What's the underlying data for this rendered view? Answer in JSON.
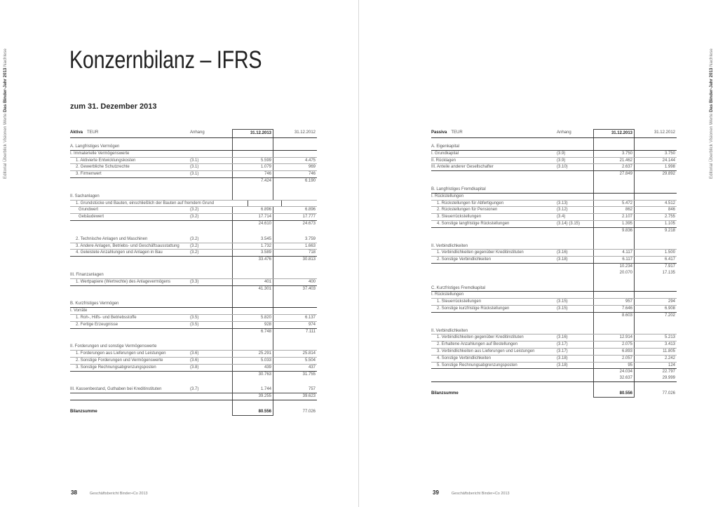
{
  "side_nav": {
    "before": "Editorial Überblick Visionen Werte ",
    "active": "Das Binder-Jahr 2013",
    "after": " Nachlese"
  },
  "title": "Konzernbilanz – IFRS",
  "subtitle": "zum 31. Dezember 2013",
  "aktiva": {
    "header": {
      "side": "Aktiva",
      "unit": "TEUR",
      "note": "Anhang",
      "y2013": "31.12.2013",
      "y2012": "31.12.2012"
    },
    "rows": [
      {
        "kind": "section",
        "label": "A.  Langfristiges Vermögen",
        "note": "",
        "v2013": "",
        "v2012": ""
      },
      {
        "kind": "group",
        "label": "I.   Immaterielle Vermögenswerte",
        "note": "",
        "v2013": "",
        "v2012": ""
      },
      {
        "kind": "item",
        "label": "1.  Aktivierte Entwicklungskosten",
        "note": "(3.1)",
        "v2013": "5.599",
        "v2012": "4.475"
      },
      {
        "kind": "item",
        "label": "2.  Gewerbliche Schutzrechte",
        "note": "(3.1)",
        "v2013": "1.079",
        "v2012": "969"
      },
      {
        "kind": "item",
        "label": "3.  Firmenwert",
        "note": "(3.1)",
        "v2013": "746",
        "v2012": "746"
      },
      {
        "kind": "subtotal",
        "label": "",
        "note": "",
        "v2013": "7.424",
        "v2012": "6.190"
      },
      {
        "kind": "group",
        "label": "II.  Sachanlagen",
        "note": "",
        "v2013": "",
        "v2012": ""
      },
      {
        "kind": "item",
        "label": "1.  Grundstücke und Bauten, einschließlich der Bauten auf fremdem Grund",
        "note": "",
        "v2013": "",
        "v2012": ""
      },
      {
        "kind": "subitem",
        "label": "Grundwert",
        "note": "(3.2)",
        "v2013": "6.896",
        "v2012": "6.896"
      },
      {
        "kind": "subitem",
        "label": "Gebäudewert",
        "note": "(3.2)",
        "v2013": "17.714",
        "v2012": "17.777"
      },
      {
        "kind": "subtotal",
        "label": "",
        "note": "",
        "v2013": "24.610",
        "v2012": "24.673"
      },
      {
        "kind": "item",
        "label": "2.  Technische Anlagen und Maschinen",
        "note": "(3.2)",
        "v2013": "3.545",
        "v2012": "3.759"
      },
      {
        "kind": "item",
        "label": "3.  Andere Anlagen, Betriebs- und Geschäftsausstattung",
        "note": "(3.2)",
        "v2013": "1.732",
        "v2012": "1.663"
      },
      {
        "kind": "item",
        "label": "4.  Geleistete Anzahlungen und Anlagen in Bau",
        "note": "(3.2)",
        "v2013": "3.589",
        "v2012": "718"
      },
      {
        "kind": "subtotal",
        "label": "",
        "note": "",
        "v2013": "33.476",
        "v2012": "30.813"
      },
      {
        "kind": "group",
        "label": "III. Finanzanlagen",
        "note": "",
        "v2013": "",
        "v2012": ""
      },
      {
        "kind": "item",
        "label": "1.  Wertpapiere (Wertrechte) des Anlagevermögens",
        "note": "(3.3)",
        "v2013": "401",
        "v2012": "400"
      },
      {
        "kind": "subtotal",
        "label": "",
        "note": "",
        "v2013": "41.301",
        "v2012": "37.403"
      },
      {
        "kind": "section",
        "label": "B.  Kurzfristiges Vermögen",
        "note": "",
        "v2013": "",
        "v2012": ""
      },
      {
        "kind": "group",
        "label": "I.   Vorräte",
        "note": "",
        "v2013": "",
        "v2012": ""
      },
      {
        "kind": "item",
        "label": "1.  Roh-, Hilfs- und Betriebsstoffe",
        "note": "(3.5)",
        "v2013": "5.820",
        "v2012": "6.137"
      },
      {
        "kind": "item",
        "label": "2.  Fertige Erzeugnisse",
        "note": "(3.5)",
        "v2013": "928",
        "v2012": "974"
      },
      {
        "kind": "subtotal",
        "label": "",
        "note": "",
        "v2013": "6.748",
        "v2012": "7.111"
      },
      {
        "kind": "group",
        "label": "II.  Forderungen und sonstige Vermögenswerte",
        "note": "",
        "v2013": "",
        "v2012": ""
      },
      {
        "kind": "item",
        "label": "1.  Forderungen aus Lieferungen und Leistungen",
        "note": "(3.6)",
        "v2013": "25.291",
        "v2012": "25.814"
      },
      {
        "kind": "item",
        "label": "2.  Sonstige Forderungen und Vermögenswerte",
        "note": "(3.6)",
        "v2013": "5.033",
        "v2012": "5.504"
      },
      {
        "kind": "item",
        "label": "3.  Sonstige Rechnungsabgrenzungsposten",
        "note": "(3.8)",
        "v2013": "439",
        "v2012": "437"
      },
      {
        "kind": "subtotal",
        "label": "",
        "note": "",
        "v2013": "30.763",
        "v2012": "31.755"
      },
      {
        "kind": "group",
        "label": "III. Kassenbestand, Guthaben bei Kreditinstituten",
        "note": "(3.7)",
        "v2013": "1.744",
        "v2012": "757"
      },
      {
        "kind": "subtotal",
        "label": "",
        "note": "",
        "v2013": "39.255",
        "v2012": "39.623"
      },
      {
        "kind": "total",
        "label": "Bilanzsumme",
        "note": "",
        "v2013": "80.556",
        "v2012": "77.026"
      }
    ]
  },
  "passiva": {
    "header": {
      "side": "Passiva",
      "unit": "TEUR",
      "note": "Anhang",
      "y2013": "31.12.2013",
      "y2012": "31.12.2012"
    },
    "rows": [
      {
        "kind": "section",
        "label": "A.  Eigenkapital",
        "note": "",
        "v2013": "",
        "v2012": ""
      },
      {
        "kind": "group",
        "label": "I.   Grundkapital",
        "note": "(3.9)",
        "v2013": "3.750",
        "v2012": "3.750"
      },
      {
        "kind": "group",
        "label": "II.  Rücklagen",
        "note": "(3.9)",
        "v2013": "21.462",
        "v2012": "24.144"
      },
      {
        "kind": "group",
        "label": "III. Anteile anderer Gesellschafter",
        "note": "(3.10)",
        "v2013": "2.637",
        "v2012": "1.998"
      },
      {
        "kind": "subtotal",
        "label": "",
        "note": "",
        "v2013": "27.849",
        "v2012": "29.892"
      },
      {
        "kind": "section",
        "label": "B.  Langfristiges Fremdkapital",
        "note": "",
        "v2013": "",
        "v2012": ""
      },
      {
        "kind": "group",
        "label": "I.   Rückstellungen",
        "note": "",
        "v2013": "",
        "v2012": ""
      },
      {
        "kind": "item",
        "label": "1.  Rückstellungen für Abfertigungen",
        "note": "(3.13)",
        "v2013": "5.472",
        "v2012": "4.512"
      },
      {
        "kind": "item",
        "label": "2.  Rückstellungen für Pensionen",
        "note": "(3.12)",
        "v2013": "862",
        "v2012": "846"
      },
      {
        "kind": "item",
        "label": "3.  Steuerrückstellungen",
        "note": "(3.4)",
        "v2013": "2.107",
        "v2012": "2.755"
      },
      {
        "kind": "item",
        "label": "4.  Sonstige langfristige Rückstellungen",
        "note": "(3.14) (3.15)",
        "v2013": "1.395",
        "v2012": "1.105"
      },
      {
        "kind": "subtotal",
        "label": "",
        "note": "",
        "v2013": "9.836",
        "v2012": "9.218"
      },
      {
        "kind": "group",
        "label": "II.  Verbindlichkeiten",
        "note": "",
        "v2013": "",
        "v2012": ""
      },
      {
        "kind": "item",
        "label": "1.  Verbindlichkeiten gegenüber Kreditinstituten",
        "note": "(3.16)",
        "v2013": "4.117",
        "v2012": "1.500"
      },
      {
        "kind": "item",
        "label": "2.  Sonstige Verbindlichkeiten",
        "note": "(3.18)",
        "v2013": "6.117",
        "v2012": "6.417"
      },
      {
        "kind": "subtotal",
        "label": "",
        "note": "",
        "v2013": "10.234",
        "v2012": "7.917"
      },
      {
        "kind": "subtotal",
        "label": "",
        "note": "",
        "v2013": "20.070",
        "v2012": "17.135"
      },
      {
        "kind": "section",
        "label": "C.  Kurzfristiges Fremdkapital",
        "note": "",
        "v2013": "",
        "v2012": ""
      },
      {
        "kind": "group",
        "label": "I.   Rückstellungen",
        "note": "",
        "v2013": "",
        "v2012": ""
      },
      {
        "kind": "item",
        "label": "1.  Steuerrückstellungen",
        "note": "(3.15)",
        "v2013": "957",
        "v2012": "294"
      },
      {
        "kind": "item",
        "label": "2.  Sonstige kurzfristige Rückstellungen",
        "note": "(3.15)",
        "v2013": "7.646",
        "v2012": "6.908"
      },
      {
        "kind": "subtotal",
        "label": "",
        "note": "",
        "v2013": "8.603",
        "v2012": "7.202"
      },
      {
        "kind": "group",
        "label": "II.  Verbindlichkeiten",
        "note": "",
        "v2013": "",
        "v2012": ""
      },
      {
        "kind": "item",
        "label": "1.  Verbindlichkeiten gegenüber Kreditinstituten",
        "note": "(3.16)",
        "v2013": "12.914",
        "v2012": "5.213"
      },
      {
        "kind": "item",
        "label": "2.  Erhaltene Anzahlungen auf Bestellungen",
        "note": "(3.17)",
        "v2013": "2.075",
        "v2012": "3.413"
      },
      {
        "kind": "item",
        "label": "3.  Verbindlichkeiten aus Lieferungen und Leistungen",
        "note": "(3.17)",
        "v2013": "6.893",
        "v2012": "11.805"
      },
      {
        "kind": "item",
        "label": "4.  Sonstige Verbindlichkeiten",
        "note": "(3.18)",
        "v2013": "2.057",
        "v2012": "2.242"
      },
      {
        "kind": "item",
        "label": "5.  Sonstige Rechnungsabgrenzungsposten",
        "note": "(3.18)",
        "v2013": "95",
        "v2012": "124"
      },
      {
        "kind": "subtotal",
        "label": "",
        "note": "",
        "v2013": "24.034",
        "v2012": "22.797"
      },
      {
        "kind": "subtotal",
        "label": "",
        "note": "",
        "v2013": "32.637",
        "v2012": "29.999"
      },
      {
        "kind": "total",
        "label": "Bilanzsumme",
        "note": "",
        "v2013": "80.556",
        "v2012": "77.026"
      }
    ]
  },
  "footer_left": {
    "page": "38",
    "text": "Geschäftsbericht Binder+Co 2013"
  },
  "footer_right": {
    "page": "39",
    "text": "Geschäftsbericht Binder+Co 2013"
  }
}
